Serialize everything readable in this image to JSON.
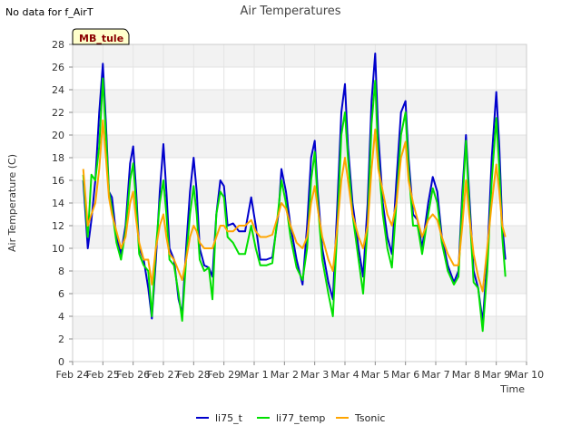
{
  "status_text": "No data for f_AirT",
  "colors": {
    "li75_t": "#0000cc",
    "li77_temp": "#00e000",
    "Tsonic": "#ffa500",
    "band": "#f2f2f2",
    "badge_bg": "#ffffcc"
  },
  "chart_data": {
    "type": "line",
    "title": "Air Temperatures",
    "xlabel": "Time",
    "ylabel": "Air Temperature (C)",
    "ylim": [
      0,
      28
    ],
    "xlim": [
      0,
      15
    ],
    "yticks": [
      0,
      2,
      4,
      6,
      8,
      10,
      12,
      14,
      16,
      18,
      20,
      22,
      24,
      26,
      28
    ],
    "xticks": [
      {
        "x": 0,
        "label": "Feb 24"
      },
      {
        "x": 1,
        "label": "Feb 25"
      },
      {
        "x": 2,
        "label": "Feb 26"
      },
      {
        "x": 3,
        "label": "Feb 27"
      },
      {
        "x": 4,
        "label": "Feb 28"
      },
      {
        "x": 5,
        "label": "Feb 29"
      },
      {
        "x": 6,
        "label": "Mar 1"
      },
      {
        "x": 7,
        "label": "Mar 2"
      },
      {
        "x": 8,
        "label": "Mar 3"
      },
      {
        "x": 9,
        "label": "Mar 4"
      },
      {
        "x": 10,
        "label": "Mar 5"
      },
      {
        "x": 11,
        "label": "Mar 6"
      },
      {
        "x": 12,
        "label": "Mar 7"
      },
      {
        "x": 13,
        "label": "Mar 8"
      },
      {
        "x": 14,
        "label": "Mar 9"
      },
      {
        "x": 15,
        "label": "Mar 10"
      }
    ],
    "legend_position": "bottom-center",
    "annotation": "MB_tule",
    "series": [
      {
        "name": "li75_t",
        "color_key": "li75_t",
        "points": [
          [
            0.35,
            16
          ],
          [
            0.5,
            10
          ],
          [
            0.62,
            12.5
          ],
          [
            0.75,
            16
          ],
          [
            0.88,
            22
          ],
          [
            1.0,
            26.3
          ],
          [
            1.1,
            21
          ],
          [
            1.2,
            15
          ],
          [
            1.3,
            14.5
          ],
          [
            1.45,
            11
          ],
          [
            1.6,
            9.5
          ],
          [
            1.75,
            12
          ],
          [
            1.9,
            17.5
          ],
          [
            2.0,
            19
          ],
          [
            2.1,
            15
          ],
          [
            2.2,
            10
          ],
          [
            2.35,
            9
          ],
          [
            2.5,
            6.5
          ],
          [
            2.62,
            3.8
          ],
          [
            2.75,
            9
          ],
          [
            2.88,
            15
          ],
          [
            3.0,
            19.2
          ],
          [
            3.1,
            15
          ],
          [
            3.2,
            10
          ],
          [
            3.35,
            9
          ],
          [
            3.5,
            5.5
          ],
          [
            3.62,
            4.2
          ],
          [
            3.75,
            10
          ],
          [
            3.88,
            15
          ],
          [
            4.0,
            18
          ],
          [
            4.1,
            15
          ],
          [
            4.2,
            10
          ],
          [
            4.35,
            8.5
          ],
          [
            4.5,
            8.3
          ],
          [
            4.62,
            7.5
          ],
          [
            4.75,
            13
          ],
          [
            4.88,
            16
          ],
          [
            5.0,
            15.5
          ],
          [
            5.12,
            12
          ],
          [
            5.3,
            12.2
          ],
          [
            5.5,
            11.5
          ],
          [
            5.7,
            11.5
          ],
          [
            5.9,
            14.5
          ],
          [
            6.05,
            12
          ],
          [
            6.2,
            9
          ],
          [
            6.4,
            9
          ],
          [
            6.6,
            9.2
          ],
          [
            6.8,
            13
          ],
          [
            6.9,
            17
          ],
          [
            7.05,
            15
          ],
          [
            7.2,
            12
          ],
          [
            7.4,
            9
          ],
          [
            7.6,
            6.8
          ],
          [
            7.75,
            12
          ],
          [
            7.88,
            18
          ],
          [
            8.0,
            19.5
          ],
          [
            8.1,
            15
          ],
          [
            8.25,
            10
          ],
          [
            8.45,
            7
          ],
          [
            8.6,
            5.5
          ],
          [
            8.75,
            14
          ],
          [
            8.88,
            22
          ],
          [
            9.0,
            24.5
          ],
          [
            9.1,
            19
          ],
          [
            9.25,
            14
          ],
          [
            9.45,
            10
          ],
          [
            9.6,
            7.5
          ],
          [
            9.75,
            14
          ],
          [
            9.88,
            23
          ],
          [
            10.0,
            27.2
          ],
          [
            10.1,
            20
          ],
          [
            10.25,
            14
          ],
          [
            10.4,
            11
          ],
          [
            10.55,
            9.5
          ],
          [
            10.7,
            16
          ],
          [
            10.85,
            22
          ],
          [
            11.0,
            23
          ],
          [
            11.1,
            18
          ],
          [
            11.25,
            13
          ],
          [
            11.4,
            12.5
          ],
          [
            11.55,
            10
          ],
          [
            11.75,
            14
          ],
          [
            11.9,
            16.3
          ],
          [
            12.05,
            15
          ],
          [
            12.2,
            11
          ],
          [
            12.4,
            8.5
          ],
          [
            12.6,
            7
          ],
          [
            12.75,
            8
          ],
          [
            12.88,
            15
          ],
          [
            13.0,
            20
          ],
          [
            13.1,
            15
          ],
          [
            13.25,
            8
          ],
          [
            13.4,
            6.5
          ],
          [
            13.55,
            3.5
          ],
          [
            13.7,
            9
          ],
          [
            13.85,
            18
          ],
          [
            14.0,
            23.8
          ],
          [
            14.1,
            19
          ],
          [
            14.2,
            12
          ],
          [
            14.3,
            9
          ]
        ]
      },
      {
        "name": "li77_temp",
        "color_key": "li77_temp",
        "points": [
          [
            0.35,
            16.5
          ],
          [
            0.5,
            11
          ],
          [
            0.62,
            16.5
          ],
          [
            0.75,
            16
          ],
          [
            0.88,
            19
          ],
          [
            1.0,
            25
          ],
          [
            1.1,
            20
          ],
          [
            1.2,
            15
          ],
          [
            1.3,
            13.5
          ],
          [
            1.45,
            10.5
          ],
          [
            1.6,
            9
          ],
          [
            1.75,
            11.5
          ],
          [
            1.9,
            16
          ],
          [
            2.0,
            17.5
          ],
          [
            2.1,
            14
          ],
          [
            2.2,
            9.5
          ],
          [
            2.35,
            8.5
          ],
          [
            2.5,
            8
          ],
          [
            2.62,
            4
          ],
          [
            2.75,
            10
          ],
          [
            2.88,
            14
          ],
          [
            3.0,
            16
          ],
          [
            3.1,
            13
          ],
          [
            3.2,
            9
          ],
          [
            3.35,
            8.5
          ],
          [
            3.5,
            6
          ],
          [
            3.62,
            3.6
          ],
          [
            3.75,
            9
          ],
          [
            3.88,
            13
          ],
          [
            4.0,
            15.5
          ],
          [
            4.1,
            13
          ],
          [
            4.2,
            9
          ],
          [
            4.35,
            8
          ],
          [
            4.5,
            8.3
          ],
          [
            4.62,
            5.5
          ],
          [
            4.75,
            13
          ],
          [
            4.88,
            15
          ],
          [
            5.0,
            14.5
          ],
          [
            5.12,
            11
          ],
          [
            5.3,
            10.5
          ],
          [
            5.5,
            9.5
          ],
          [
            5.7,
            9.5
          ],
          [
            5.9,
            12
          ],
          [
            6.05,
            10
          ],
          [
            6.2,
            8.5
          ],
          [
            6.4,
            8.5
          ],
          [
            6.6,
            8.7
          ],
          [
            6.8,
            13.5
          ],
          [
            6.9,
            16
          ],
          [
            7.05,
            14
          ],
          [
            7.2,
            11
          ],
          [
            7.4,
            8.3
          ],
          [
            7.6,
            7.2
          ],
          [
            7.75,
            10
          ],
          [
            7.88,
            16
          ],
          [
            8.0,
            18.5
          ],
          [
            8.1,
            14
          ],
          [
            8.25,
            9
          ],
          [
            8.45,
            6
          ],
          [
            8.6,
            4
          ],
          [
            8.75,
            12
          ],
          [
            8.88,
            20
          ],
          [
            9.0,
            22
          ],
          [
            9.1,
            18
          ],
          [
            9.25,
            13
          ],
          [
            9.45,
            9
          ],
          [
            9.6,
            6
          ],
          [
            9.75,
            12
          ],
          [
            9.88,
            21
          ],
          [
            10.0,
            24.8
          ],
          [
            10.1,
            18
          ],
          [
            10.25,
            13
          ],
          [
            10.4,
            10
          ],
          [
            10.55,
            8.3
          ],
          [
            10.7,
            14
          ],
          [
            10.85,
            20
          ],
          [
            11.0,
            22
          ],
          [
            11.1,
            17
          ],
          [
            11.25,
            12
          ],
          [
            11.4,
            12
          ],
          [
            11.55,
            9.5
          ],
          [
            11.75,
            13
          ],
          [
            11.9,
            15.3
          ],
          [
            12.05,
            14
          ],
          [
            12.2,
            10.5
          ],
          [
            12.4,
            8
          ],
          [
            12.6,
            6.8
          ],
          [
            12.75,
            7.5
          ],
          [
            12.88,
            14
          ],
          [
            13.0,
            19.5
          ],
          [
            13.1,
            14
          ],
          [
            13.25,
            7
          ],
          [
            13.4,
            6.5
          ],
          [
            13.55,
            2.7
          ],
          [
            13.7,
            8
          ],
          [
            13.85,
            16
          ],
          [
            14.0,
            21.5
          ],
          [
            14.1,
            17
          ],
          [
            14.2,
            11
          ],
          [
            14.3,
            7.5
          ]
        ]
      },
      {
        "name": "Tsonic",
        "color_key": "Tsonic",
        "points": [
          [
            0.35,
            17
          ],
          [
            0.5,
            12
          ],
          [
            0.62,
            13
          ],
          [
            0.75,
            14
          ],
          [
            0.88,
            17
          ],
          [
            1.0,
            21.3
          ],
          [
            1.1,
            18
          ],
          [
            1.2,
            14.5
          ],
          [
            1.3,
            13
          ],
          [
            1.45,
            11.5
          ],
          [
            1.6,
            10
          ],
          [
            1.75,
            11
          ],
          [
            1.9,
            14
          ],
          [
            2.0,
            15
          ],
          [
            2.1,
            12.5
          ],
          [
            2.2,
            10.5
          ],
          [
            2.35,
            9
          ],
          [
            2.5,
            9
          ],
          [
            2.62,
            6.8
          ],
          [
            2.75,
            10
          ],
          [
            2.88,
            12
          ],
          [
            3.0,
            13
          ],
          [
            3.1,
            11
          ],
          [
            3.2,
            9.5
          ],
          [
            3.35,
            9
          ],
          [
            3.5,
            8
          ],
          [
            3.62,
            7.2
          ],
          [
            3.75,
            9
          ],
          [
            3.88,
            11
          ],
          [
            4.0,
            12
          ],
          [
            4.1,
            11.5
          ],
          [
            4.2,
            10.5
          ],
          [
            4.35,
            10
          ],
          [
            4.5,
            10
          ],
          [
            4.62,
            10
          ],
          [
            4.75,
            11
          ],
          [
            4.88,
            12
          ],
          [
            5.0,
            12
          ],
          [
            5.12,
            11.5
          ],
          [
            5.3,
            11.5
          ],
          [
            5.5,
            12
          ],
          [
            5.7,
            12
          ],
          [
            5.9,
            12.5
          ],
          [
            6.05,
            11.5
          ],
          [
            6.2,
            11
          ],
          [
            6.4,
            11
          ],
          [
            6.6,
            11.2
          ],
          [
            6.8,
            13
          ],
          [
            6.9,
            14
          ],
          [
            7.05,
            13.5
          ],
          [
            7.2,
            12
          ],
          [
            7.4,
            10.5
          ],
          [
            7.6,
            10
          ],
          [
            7.75,
            11
          ],
          [
            7.88,
            14
          ],
          [
            8.0,
            15.5
          ],
          [
            8.1,
            13.5
          ],
          [
            8.25,
            11
          ],
          [
            8.45,
            9
          ],
          [
            8.6,
            8
          ],
          [
            8.75,
            12
          ],
          [
            8.88,
            16
          ],
          [
            9.0,
            18
          ],
          [
            9.1,
            16
          ],
          [
            9.25,
            13
          ],
          [
            9.45,
            11
          ],
          [
            9.6,
            10
          ],
          [
            9.75,
            12
          ],
          [
            9.88,
            17
          ],
          [
            10.0,
            20.5
          ],
          [
            10.1,
            17
          ],
          [
            10.25,
            15
          ],
          [
            10.4,
            13
          ],
          [
            10.55,
            12
          ],
          [
            10.7,
            14
          ],
          [
            10.85,
            18
          ],
          [
            11.0,
            19.4
          ],
          [
            11.1,
            16
          ],
          [
            11.25,
            14
          ],
          [
            11.4,
            12.5
          ],
          [
            11.55,
            11
          ],
          [
            11.75,
            12.5
          ],
          [
            11.9,
            13
          ],
          [
            12.05,
            12.5
          ],
          [
            12.2,
            11
          ],
          [
            12.4,
            9.5
          ],
          [
            12.6,
            8.5
          ],
          [
            12.75,
            8.5
          ],
          [
            12.88,
            12
          ],
          [
            13.0,
            16
          ],
          [
            13.1,
            13
          ],
          [
            13.25,
            9.5
          ],
          [
            13.4,
            7.5
          ],
          [
            13.55,
            6.2
          ],
          [
            13.7,
            10
          ],
          [
            13.85,
            14
          ],
          [
            14.0,
            17.4
          ],
          [
            14.1,
            15
          ],
          [
            14.2,
            12
          ],
          [
            14.3,
            11
          ]
        ]
      }
    ]
  }
}
